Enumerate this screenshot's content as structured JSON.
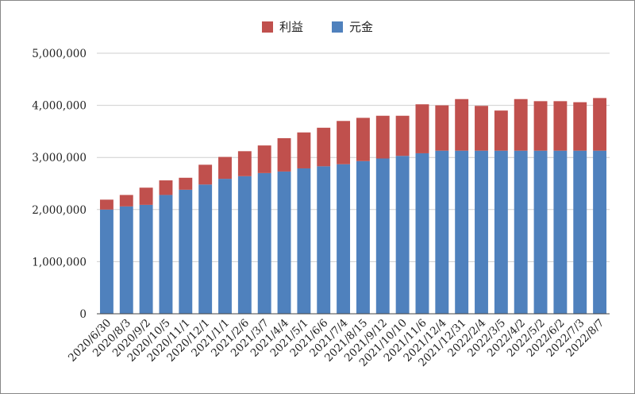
{
  "chart_data": {
    "type": "bar",
    "stacked": true,
    "title": "",
    "xlabel": "",
    "ylabel": "",
    "ylim": [
      0,
      5000000
    ],
    "yticks": [
      0,
      1000000,
      2000000,
      3000000,
      4000000,
      5000000
    ],
    "ytick_labels": [
      "0",
      "1,000,000",
      "2,000,000",
      "3,000,000",
      "4,000,000",
      "5,000,000"
    ],
    "grid": true,
    "legend_position": "top-center",
    "categories": [
      "2020/6/30",
      "2020/8/3",
      "2020/9/2",
      "2020/10/5",
      "2020/11/1",
      "2020/12/1",
      "2021/1/1",
      "2021/2/6",
      "2021/3/7",
      "2021/4/4",
      "2021/5/1",
      "2021/6/6",
      "2021/7/4",
      "2021/8/15",
      "2021/9/12",
      "2021/10/10",
      "2021/11/6",
      "2021/12/4",
      "2021/12/31",
      "2022/2/4",
      "2022/3/5",
      "2022/4/2",
      "2022/5/2",
      "2022/6/2",
      "2022/7/3",
      "2022/8/7"
    ],
    "series": [
      {
        "name": "元金",
        "color": "#4f81bd",
        "values": [
          2000000,
          2060000,
          2090000,
          2280000,
          2380000,
          2480000,
          2590000,
          2640000,
          2700000,
          2730000,
          2790000,
          2830000,
          2870000,
          2930000,
          2980000,
          3030000,
          3080000,
          3130000,
          3130000,
          3130000,
          3130000,
          3130000,
          3130000,
          3130000,
          3130000,
          3130000
        ]
      },
      {
        "name": "利益",
        "color": "#c0504d",
        "values": [
          190000,
          220000,
          330000,
          280000,
          230000,
          380000,
          420000,
          480000,
          530000,
          640000,
          690000,
          740000,
          830000,
          830000,
          820000,
          770000,
          940000,
          870000,
          990000,
          860000,
          770000,
          990000,
          950000,
          950000,
          930000,
          1010000
        ]
      }
    ]
  },
  "legend": [
    {
      "label": "利益",
      "color": "#c0504d"
    },
    {
      "label": "元金",
      "color": "#4f81bd"
    }
  ]
}
